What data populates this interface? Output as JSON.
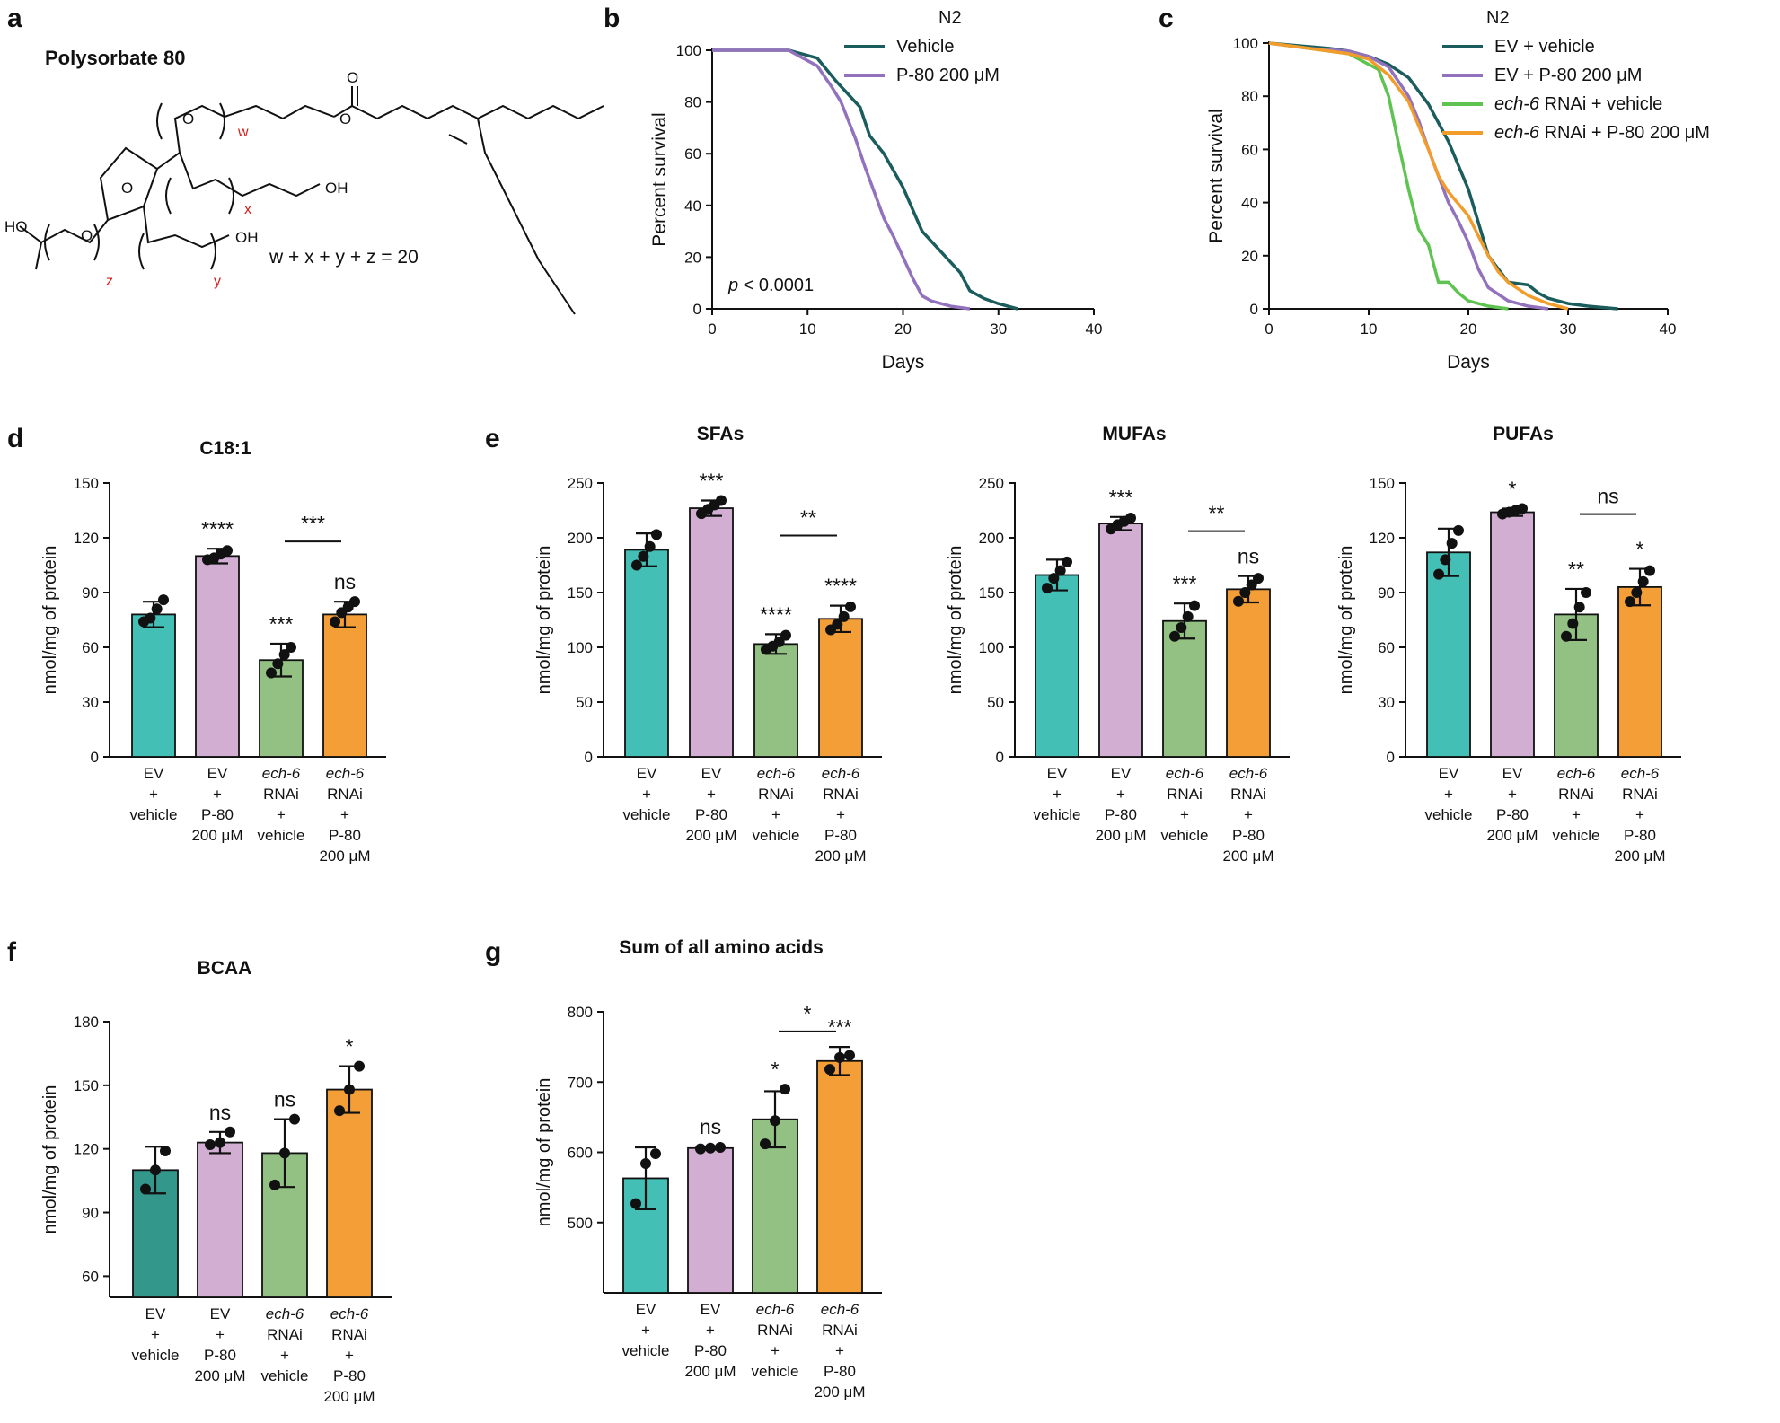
{
  "panel_labels": [
    "a",
    "b",
    "c",
    "d",
    "e",
    "f",
    "g"
  ],
  "structure": {
    "title": "Polysorbate 80",
    "formula_terms": [
      "w",
      "x",
      "y",
      "z"
    ],
    "formula_text": "w + x + y + z = 20",
    "atom_labels": {
      "o": "O",
      "oh": "OH",
      "ho": "HO"
    }
  },
  "chart_data": [
    {
      "id": "b",
      "type": "line",
      "title": "N2",
      "xlabel": "Days",
      "ylabel": "Percent survival",
      "xlim": [
        0,
        40
      ],
      "ylim": [
        0,
        100
      ],
      "xticks": [
        0,
        10,
        20,
        30,
        40
      ],
      "yticks": [
        0,
        20,
        40,
        60,
        80,
        100
      ],
      "annotation": {
        "italic": "p",
        "text": " < 0.0001"
      },
      "series": [
        {
          "name": "Vehicle",
          "color": "#1b5d5d",
          "x": [
            0,
            8,
            11,
            13,
            14.5,
            15.5,
            16.5,
            18,
            20,
            22,
            24,
            26,
            27,
            28.5,
            30,
            32
          ],
          "y": [
            100,
            100,
            97,
            88,
            82,
            78,
            67,
            60,
            47,
            30,
            22,
            14,
            7,
            4,
            2,
            0
          ]
        },
        {
          "name": "P-80 200 μM",
          "color": "#9272bd",
          "x": [
            0,
            8,
            11,
            12.5,
            13.5,
            15,
            16,
            17,
            18,
            19,
            20,
            21,
            22,
            23,
            24,
            25,
            27
          ],
          "y": [
            100,
            100,
            94,
            86,
            80,
            66,
            55,
            45,
            35,
            28,
            20,
            12,
            5,
            3,
            2,
            1,
            0
          ]
        }
      ]
    },
    {
      "id": "c",
      "type": "line",
      "title": "N2",
      "xlabel": "Days",
      "ylabel": "Percent survival",
      "xlim": [
        0,
        40
      ],
      "ylim": [
        0,
        100
      ],
      "xticks": [
        0,
        10,
        20,
        30,
        40
      ],
      "yticks": [
        0,
        20,
        40,
        60,
        80,
        100
      ],
      "series": [
        {
          "name": "EV + vehicle",
          "color": "#1b5d5d",
          "x": [
            0,
            3,
            6,
            8,
            10,
            12,
            14,
            16,
            18,
            20,
            22,
            24,
            26,
            27,
            28,
            30,
            32,
            35
          ],
          "y": [
            100,
            99,
            98,
            97,
            95,
            92,
            87,
            77,
            63,
            45,
            20,
            10,
            9,
            6,
            4,
            2,
            1,
            0
          ]
        },
        {
          "name": "EV + P-80 200 μM",
          "color": "#9272bd",
          "x": [
            0,
            4,
            8,
            10,
            12,
            14,
            15,
            16,
            17,
            18,
            19,
            20,
            21,
            22,
            24,
            26,
            28
          ],
          "y": [
            100,
            98,
            97,
            95,
            91,
            80,
            71,
            60,
            50,
            40,
            33,
            25,
            15,
            8,
            3,
            1,
            0
          ]
        },
        {
          "name": "ech-6 RNAi + vehicle",
          "italic_prefix": "ech-6",
          "rest": " RNAi + vehicle",
          "color": "#5fc352",
          "x": [
            0,
            4,
            8,
            11,
            12,
            13,
            14,
            15,
            16,
            17,
            18,
            19,
            20,
            21,
            22,
            24
          ],
          "y": [
            100,
            98,
            96,
            90,
            80,
            62,
            45,
            30,
            24,
            10,
            10,
            6,
            3,
            2,
            1,
            0
          ]
        },
        {
          "name": "ech-6 RNAi + P-80 200 μM",
          "italic_prefix": "ech-6",
          "rest": " RNAi + P-80 200 μM",
          "color": "#f29d2b",
          "x": [
            0,
            4,
            8,
            10,
            12,
            14,
            16,
            17,
            18,
            20,
            22,
            23,
            24,
            26,
            28,
            30
          ],
          "y": [
            100,
            98,
            96,
            94,
            88,
            78,
            60,
            50,
            44,
            35,
            20,
            14,
            10,
            5,
            2,
            0
          ]
        }
      ]
    },
    {
      "id": "d",
      "type": "bar",
      "title": "C18:1",
      "ylabel": "nmol/mg of protein",
      "ylim": [
        0,
        150
      ],
      "yticks": [
        0,
        30,
        60,
        90,
        120,
        150
      ],
      "categories": [
        "EV + vehicle",
        "EV + P-80 200 μM",
        "ech-6 RNAi + vehicle",
        "ech-6 RNAi + P-80 200 μM"
      ],
      "values": [
        78,
        110,
        53,
        78
      ],
      "errors": [
        7,
        4,
        9,
        7
      ],
      "points": [
        [
          74,
          76,
          81,
          86
        ],
        [
          108,
          109,
          111,
          113
        ],
        [
          46,
          51,
          56,
          60
        ],
        [
          74,
          79,
          82,
          85
        ]
      ],
      "significance": [
        "",
        "****",
        "***",
        "ns"
      ],
      "brackets": [
        {
          "from": 2,
          "to": 3,
          "label": "***",
          "y": 118
        }
      ]
    },
    {
      "id": "e_sfa",
      "type": "bar",
      "title": "SFAs",
      "ylabel": "nmol/mg of protein",
      "ylim": [
        0,
        250
      ],
      "yticks": [
        0,
        50,
        100,
        150,
        200,
        250
      ],
      "categories": [
        "EV + vehicle",
        "EV + P-80 200 μM",
        "ech-6 RNAi + vehicle",
        "ech-6 RNAi + P-80 200 μM"
      ],
      "values": [
        189,
        227,
        103,
        126
      ],
      "errors": [
        15,
        7,
        9,
        12
      ],
      "points": [
        [
          175,
          183,
          192,
          203
        ],
        [
          222,
          226,
          230,
          234
        ],
        [
          98,
          101,
          105,
          111
        ],
        [
          116,
          121,
          128,
          137
        ]
      ],
      "significance": [
        "",
        "***",
        "****",
        "****"
      ],
      "brackets": [
        {
          "from": 2,
          "to": 3,
          "label": "**",
          "y": 202
        }
      ]
    },
    {
      "id": "e_mufa",
      "type": "bar",
      "title": "MUFAs",
      "ylabel": "nmol/mg of protein",
      "ylim": [
        0,
        250
      ],
      "yticks": [
        0,
        50,
        100,
        150,
        200,
        250
      ],
      "categories": [
        "EV + vehicle",
        "EV + P-80 200 μM",
        "ech-6 RNAi + vehicle",
        "ech-6 RNAi + P-80 200 μM"
      ],
      "values": [
        166,
        213,
        124,
        153
      ],
      "errors": [
        14,
        6,
        16,
        12
      ],
      "points": [
        [
          154,
          163,
          170,
          178
        ],
        [
          208,
          212,
          215,
          218
        ],
        [
          110,
          118,
          128,
          138
        ],
        [
          142,
          150,
          157,
          163
        ]
      ],
      "significance": [
        "",
        "***",
        "***",
        "ns"
      ],
      "brackets": [
        {
          "from": 2,
          "to": 3,
          "label": "**",
          "y": 206
        }
      ]
    },
    {
      "id": "e_pufa",
      "type": "bar",
      "title": "PUFAs",
      "ylabel": "nmol/mg of protein",
      "ylim": [
        0,
        150
      ],
      "yticks": [
        0,
        30,
        60,
        90,
        120,
        150
      ],
      "categories": [
        "EV + vehicle",
        "EV + P-80 200 μM",
        "ech-6 RNAi + vehicle",
        "ech-6 RNAi + P-80 200 μM"
      ],
      "values": [
        112,
        134,
        78,
        93
      ],
      "errors": [
        13,
        2,
        14,
        10
      ],
      "points": [
        [
          100,
          108,
          117,
          124
        ],
        [
          133,
          134,
          135,
          136
        ],
        [
          66,
          73,
          82,
          90
        ],
        [
          85,
          90,
          96,
          102
        ]
      ],
      "significance": [
        "",
        "*",
        "**",
        "*"
      ],
      "brackets": [
        {
          "from": 2,
          "to": 3,
          "label": "ns",
          "y": 133
        }
      ]
    },
    {
      "id": "f",
      "type": "bar",
      "title": "BCAA",
      "ylabel": "nmol/mg of protein",
      "ylim": [
        50,
        180
      ],
      "yticks": [
        60,
        90,
        120,
        150,
        180
      ],
      "categories": [
        "EV + vehicle",
        "EV + P-80 200 μM",
        "ech-6 RNAi + vehicle",
        "ech-6 RNAi + P-80 200 μM"
      ],
      "values": [
        110,
        123,
        118,
        148
      ],
      "errors": [
        11,
        5,
        16,
        11
      ],
      "points": [
        [
          101,
          110,
          119
        ],
        [
          122,
          123,
          128
        ],
        [
          103,
          118,
          134
        ],
        [
          138,
          148,
          159
        ]
      ],
      "significance": [
        "",
        "ns",
        "ns",
        "*"
      ],
      "colors_override": [
        "#34978b",
        "",
        "",
        ""
      ],
      "brackets": []
    },
    {
      "id": "g",
      "type": "bar",
      "title": "Sum of all amino acids",
      "ylabel": "nmol/mg of protein",
      "ylim": [
        400,
        800
      ],
      "yticks": [
        500,
        600,
        700,
        800
      ],
      "categories": [
        "EV + vehicle",
        "EV + P-80 200 μM",
        "ech-6 RNAi + vehicle",
        "ech-6 RNAi + P-80 200 μM"
      ],
      "values": [
        563,
        606,
        647,
        730
      ],
      "errors": [
        44,
        2,
        40,
        20
      ],
      "points": [
        [
          527,
          584,
          598
        ],
        [
          605,
          606,
          607
        ],
        [
          612,
          645,
          690
        ],
        [
          718,
          735,
          738
        ]
      ],
      "significance": [
        "",
        "ns",
        "*",
        "***"
      ],
      "brackets": [
        {
          "from": 2,
          "to": 3,
          "label": "*",
          "y": 772
        }
      ]
    }
  ],
  "bar_colors": [
    "#43bfb5",
    "#d2aed3",
    "#93c184",
    "#f49e37"
  ],
  "category_label_lines": [
    [
      {
        "t": "EV"
      },
      {
        "t": "+"
      },
      {
        "t": "vehicle"
      }
    ],
    [
      {
        "t": "EV"
      },
      {
        "t": "+"
      },
      {
        "t": "P-80"
      },
      {
        "t": "200 μM"
      }
    ],
    [
      {
        "t": "ech-6",
        "i": true
      },
      {
        "t": "RNAi"
      },
      {
        "t": "+"
      },
      {
        "t": "vehicle"
      }
    ],
    [
      {
        "t": "ech-6",
        "i": true
      },
      {
        "t": "RNAi"
      },
      {
        "t": "+"
      },
      {
        "t": "P-80"
      },
      {
        "t": "200 μM"
      }
    ]
  ]
}
